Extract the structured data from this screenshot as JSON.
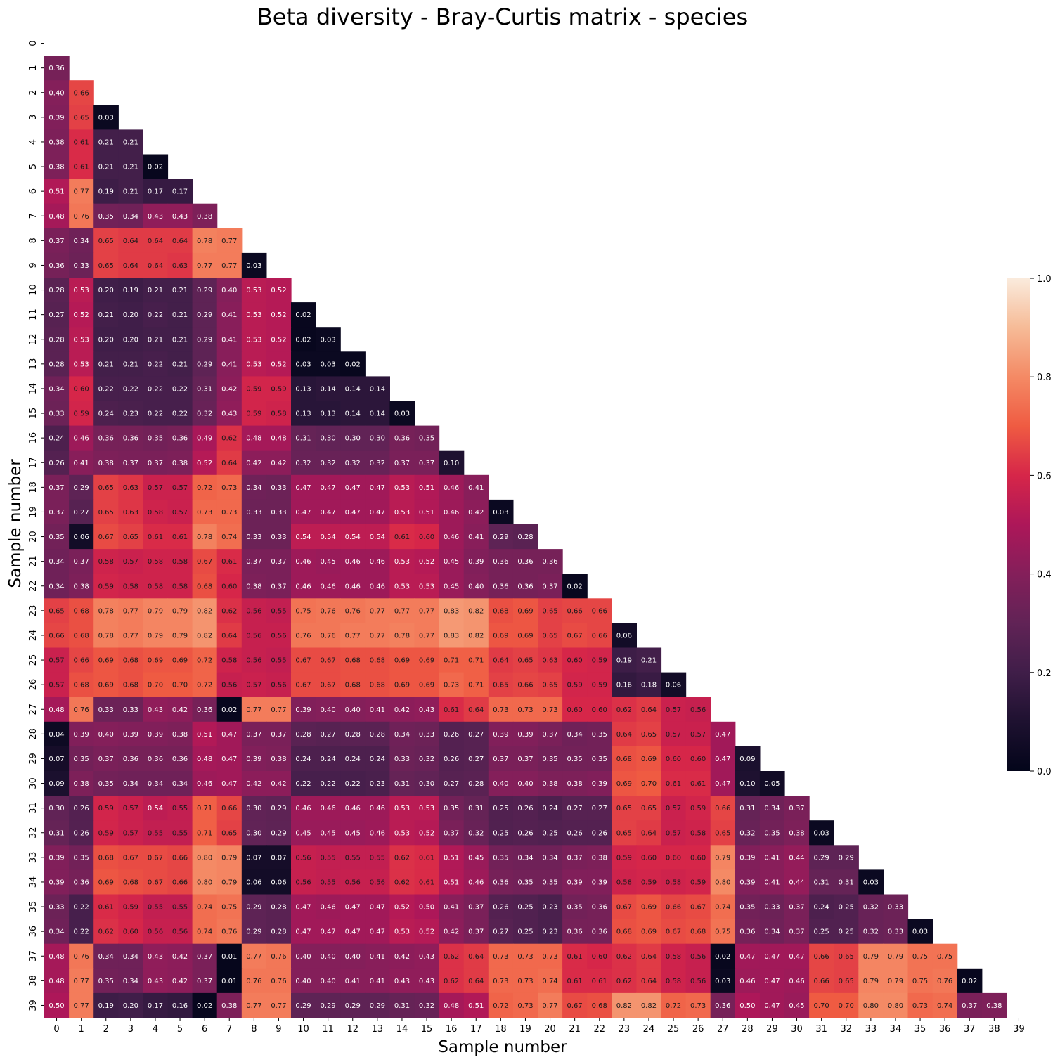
{
  "chart_data": {
    "type": "heatmap",
    "title": "Beta diversity - Bray-Curtis matrix - species",
    "xlabel": "Sample number",
    "ylabel": "Sample number",
    "mask": "upper-triangle-and-diagonal",
    "x_ticks": [
      "0",
      "1",
      "2",
      "3",
      "4",
      "5",
      "6",
      "7",
      "8",
      "9",
      "10",
      "11",
      "12",
      "13",
      "14",
      "15",
      "16",
      "17",
      "18",
      "19",
      "20",
      "21",
      "22",
      "23",
      "24",
      "25",
      "26",
      "27",
      "28",
      "29",
      "30",
      "31",
      "32",
      "33",
      "34",
      "35",
      "36",
      "37",
      "38",
      "39"
    ],
    "y_ticks": [
      "0",
      "1",
      "2",
      "3",
      "4",
      "5",
      "6",
      "7",
      "8",
      "9",
      "10",
      "11",
      "12",
      "13",
      "14",
      "15",
      "16",
      "17",
      "18",
      "19",
      "20",
      "21",
      "22",
      "23",
      "24",
      "25",
      "26",
      "27",
      "28",
      "29",
      "30",
      "31",
      "32",
      "33",
      "34",
      "35",
      "36",
      "37",
      "38",
      "39"
    ],
    "colorbar": {
      "min": 0.0,
      "max": 1.0,
      "ticks": [
        "0.0",
        "0.2",
        "0.4",
        "0.6",
        "0.8",
        "1.0"
      ],
      "colormap": "rocket"
    },
    "rows": [
      [],
      [
        0.36
      ],
      [
        0.4,
        0.66
      ],
      [
        0.39,
        0.65,
        0.03
      ],
      [
        0.38,
        0.61,
        0.21,
        0.21
      ],
      [
        0.38,
        0.61,
        0.21,
        0.21,
        0.02
      ],
      [
        0.51,
        0.77,
        0.19,
        0.21,
        0.17,
        0.17
      ],
      [
        0.48,
        0.76,
        0.35,
        0.34,
        0.43,
        0.43,
        0.38
      ],
      [
        0.37,
        0.34,
        0.65,
        0.64,
        0.64,
        0.64,
        0.78,
        0.77
      ],
      [
        0.36,
        0.33,
        0.65,
        0.64,
        0.64,
        0.63,
        0.77,
        0.77,
        0.03
      ],
      [
        0.28,
        0.53,
        0.2,
        0.19,
        0.21,
        0.21,
        0.29,
        0.4,
        0.53,
        0.52
      ],
      [
        0.27,
        0.52,
        0.21,
        0.2,
        0.22,
        0.21,
        0.29,
        0.41,
        0.53,
        0.52,
        0.02
      ],
      [
        0.28,
        0.53,
        0.2,
        0.2,
        0.21,
        0.21,
        0.29,
        0.41,
        0.53,
        0.52,
        0.02,
        0.03
      ],
      [
        0.28,
        0.53,
        0.21,
        0.21,
        0.22,
        0.21,
        0.29,
        0.41,
        0.53,
        0.52,
        0.03,
        0.03,
        0.02
      ],
      [
        0.34,
        0.6,
        0.22,
        0.22,
        0.22,
        0.22,
        0.31,
        0.42,
        0.59,
        0.59,
        0.13,
        0.14,
        0.14,
        0.14
      ],
      [
        0.33,
        0.59,
        0.24,
        0.23,
        0.22,
        0.22,
        0.32,
        0.43,
        0.59,
        0.58,
        0.13,
        0.13,
        0.14,
        0.14,
        0.03
      ],
      [
        0.24,
        0.46,
        0.36,
        0.36,
        0.35,
        0.36,
        0.49,
        0.62,
        0.48,
        0.48,
        0.31,
        0.3,
        0.3,
        0.3,
        0.36,
        0.35
      ],
      [
        0.26,
        0.41,
        0.38,
        0.37,
        0.37,
        0.38,
        0.52,
        0.64,
        0.42,
        0.42,
        0.32,
        0.32,
        0.32,
        0.32,
        0.37,
        0.37,
        0.1
      ],
      [
        0.37,
        0.29,
        0.65,
        0.63,
        0.57,
        0.57,
        0.72,
        0.73,
        0.34,
        0.33,
        0.47,
        0.47,
        0.47,
        0.47,
        0.53,
        0.51,
        0.46,
        0.41
      ],
      [
        0.37,
        0.27,
        0.65,
        0.63,
        0.58,
        0.57,
        0.73,
        0.73,
        0.33,
        0.33,
        0.47,
        0.47,
        0.47,
        0.47,
        0.53,
        0.51,
        0.46,
        0.42,
        0.03
      ],
      [
        0.35,
        0.06,
        0.67,
        0.65,
        0.61,
        0.61,
        0.78,
        0.74,
        0.33,
        0.33,
        0.54,
        0.54,
        0.54,
        0.54,
        0.61,
        0.6,
        0.46,
        0.41,
        0.29,
        0.28
      ],
      [
        0.34,
        0.37,
        0.58,
        0.57,
        0.58,
        0.58,
        0.67,
        0.61,
        0.37,
        0.37,
        0.46,
        0.45,
        0.46,
        0.46,
        0.53,
        0.52,
        0.45,
        0.39,
        0.36,
        0.36,
        0.36
      ],
      [
        0.34,
        0.38,
        0.59,
        0.58,
        0.58,
        0.58,
        0.68,
        0.6,
        0.38,
        0.37,
        0.46,
        0.46,
        0.46,
        0.46,
        0.53,
        0.53,
        0.45,
        0.4,
        0.36,
        0.36,
        0.37,
        0.02
      ],
      [
        0.65,
        0.68,
        0.78,
        0.77,
        0.79,
        0.79,
        0.82,
        0.62,
        0.56,
        0.55,
        0.75,
        0.76,
        0.76,
        0.77,
        0.77,
        0.77,
        0.83,
        0.82,
        0.68,
        0.69,
        0.65,
        0.66,
        0.66
      ],
      [
        0.66,
        0.68,
        0.78,
        0.77,
        0.79,
        0.79,
        0.82,
        0.64,
        0.56,
        0.56,
        0.76,
        0.76,
        0.77,
        0.77,
        0.78,
        0.77,
        0.83,
        0.82,
        0.69,
        0.69,
        0.65,
        0.67,
        0.66,
        0.06
      ],
      [
        0.57,
        0.66,
        0.69,
        0.68,
        0.69,
        0.69,
        0.72,
        0.58,
        0.56,
        0.55,
        0.67,
        0.67,
        0.68,
        0.68,
        0.69,
        0.69,
        0.71,
        0.71,
        0.64,
        0.65,
        0.63,
        0.6,
        0.59,
        0.19,
        0.21
      ],
      [
        0.57,
        0.68,
        0.69,
        0.68,
        0.7,
        0.7,
        0.72,
        0.56,
        0.57,
        0.56,
        0.67,
        0.67,
        0.68,
        0.68,
        0.69,
        0.69,
        0.73,
        0.71,
        0.65,
        0.66,
        0.65,
        0.59,
        0.59,
        0.16,
        0.18,
        0.06
      ],
      [
        0.48,
        0.76,
        0.33,
        0.33,
        0.43,
        0.42,
        0.36,
        0.02,
        0.77,
        0.77,
        0.39,
        0.4,
        0.4,
        0.41,
        0.42,
        0.43,
        0.61,
        0.64,
        0.73,
        0.73,
        0.73,
        0.6,
        0.6,
        0.62,
        0.64,
        0.57,
        0.56
      ],
      [
        0.04,
        0.39,
        0.4,
        0.39,
        0.39,
        0.38,
        0.51,
        0.47,
        0.37,
        0.37,
        0.28,
        0.27,
        0.28,
        0.28,
        0.34,
        0.33,
        0.26,
        0.27,
        0.39,
        0.39,
        0.37,
        0.34,
        0.35,
        0.64,
        0.65,
        0.57,
        0.57,
        0.47
      ],
      [
        0.07,
        0.35,
        0.37,
        0.36,
        0.36,
        0.36,
        0.48,
        0.47,
        0.39,
        0.38,
        0.24,
        0.24,
        0.24,
        0.24,
        0.33,
        0.32,
        0.26,
        0.27,
        0.37,
        0.37,
        0.35,
        0.35,
        0.35,
        0.68,
        0.69,
        0.6,
        0.6,
        0.47,
        0.09
      ],
      [
        0.09,
        0.38,
        0.35,
        0.34,
        0.34,
        0.34,
        0.46,
        0.47,
        0.42,
        0.42,
        0.22,
        0.22,
        0.22,
        0.23,
        0.31,
        0.3,
        0.27,
        0.28,
        0.4,
        0.4,
        0.38,
        0.38,
        0.39,
        0.69,
        0.7,
        0.61,
        0.61,
        0.47,
        0.1,
        0.05
      ],
      [
        0.3,
        0.26,
        0.59,
        0.57,
        0.54,
        0.55,
        0.71,
        0.66,
        0.3,
        0.29,
        0.46,
        0.46,
        0.46,
        0.46,
        0.53,
        0.53,
        0.35,
        0.31,
        0.25,
        0.26,
        0.24,
        0.27,
        0.27,
        0.65,
        0.65,
        0.57,
        0.59,
        0.66,
        0.31,
        0.34,
        0.37
      ],
      [
        0.31,
        0.26,
        0.59,
        0.57,
        0.55,
        0.55,
        0.71,
        0.65,
        0.3,
        0.29,
        0.45,
        0.45,
        0.45,
        0.46,
        0.53,
        0.52,
        0.37,
        0.32,
        0.25,
        0.26,
        0.25,
        0.26,
        0.26,
        0.65,
        0.64,
        0.57,
        0.58,
        0.65,
        0.32,
        0.35,
        0.38,
        0.03
      ],
      [
        0.39,
        0.35,
        0.68,
        0.67,
        0.67,
        0.66,
        0.8,
        0.79,
        0.07,
        0.07,
        0.56,
        0.55,
        0.55,
        0.55,
        0.62,
        0.61,
        0.51,
        0.45,
        0.35,
        0.34,
        0.34,
        0.37,
        0.38,
        0.59,
        0.6,
        0.6,
        0.6,
        0.79,
        0.39,
        0.41,
        0.44,
        0.29,
        0.29
      ],
      [
        0.39,
        0.36,
        0.69,
        0.68,
        0.67,
        0.66,
        0.8,
        0.79,
        0.06,
        0.06,
        0.56,
        0.55,
        0.56,
        0.56,
        0.62,
        0.61,
        0.51,
        0.46,
        0.36,
        0.35,
        0.35,
        0.39,
        0.39,
        0.58,
        0.59,
        0.58,
        0.59,
        0.8,
        0.39,
        0.41,
        0.44,
        0.31,
        0.31,
        0.03
      ],
      [
        0.33,
        0.22,
        0.61,
        0.59,
        0.55,
        0.55,
        0.74,
        0.75,
        0.29,
        0.28,
        0.47,
        0.46,
        0.47,
        0.47,
        0.52,
        0.5,
        0.41,
        0.37,
        0.26,
        0.25,
        0.23,
        0.35,
        0.36,
        0.67,
        0.69,
        0.66,
        0.67,
        0.74,
        0.35,
        0.33,
        0.37,
        0.24,
        0.25,
        0.32,
        0.33
      ],
      [
        0.34,
        0.22,
        0.62,
        0.6,
        0.56,
        0.56,
        0.74,
        0.76,
        0.29,
        0.28,
        0.47,
        0.47,
        0.47,
        0.47,
        0.53,
        0.52,
        0.42,
        0.37,
        0.27,
        0.25,
        0.23,
        0.36,
        0.36,
        0.68,
        0.69,
        0.67,
        0.68,
        0.75,
        0.36,
        0.34,
        0.37,
        0.25,
        0.25,
        0.32,
        0.33,
        0.03
      ],
      [
        0.48,
        0.76,
        0.34,
        0.34,
        0.43,
        0.42,
        0.37,
        0.01,
        0.77,
        0.76,
        0.4,
        0.4,
        0.4,
        0.41,
        0.42,
        0.43,
        0.62,
        0.64,
        0.73,
        0.73,
        0.73,
        0.61,
        0.6,
        0.62,
        0.64,
        0.58,
        0.56,
        0.02,
        0.47,
        0.47,
        0.47,
        0.66,
        0.65,
        0.79,
        0.79,
        0.75,
        0.75
      ],
      [
        0.48,
        0.77,
        0.35,
        0.34,
        0.43,
        0.42,
        0.37,
        0.01,
        0.76,
        0.76,
        0.4,
        0.4,
        0.41,
        0.41,
        0.43,
        0.43,
        0.62,
        0.64,
        0.73,
        0.73,
        0.74,
        0.61,
        0.61,
        0.62,
        0.64,
        0.58,
        0.56,
        0.03,
        0.46,
        0.47,
        0.46,
        0.66,
        0.65,
        0.79,
        0.79,
        0.75,
        0.76,
        0.02
      ],
      [
        0.5,
        0.77,
        0.19,
        0.2,
        0.17,
        0.16,
        0.02,
        0.38,
        0.77,
        0.77,
        0.29,
        0.29,
        0.29,
        0.29,
        0.31,
        0.32,
        0.48,
        0.51,
        0.72,
        0.73,
        0.77,
        0.67,
        0.68,
        0.82,
        0.82,
        0.72,
        0.73,
        0.36,
        0.5,
        0.47,
        0.45,
        0.7,
        0.7,
        0.8,
        0.8,
        0.73,
        0.74,
        0.37,
        0.38
      ]
    ]
  }
}
